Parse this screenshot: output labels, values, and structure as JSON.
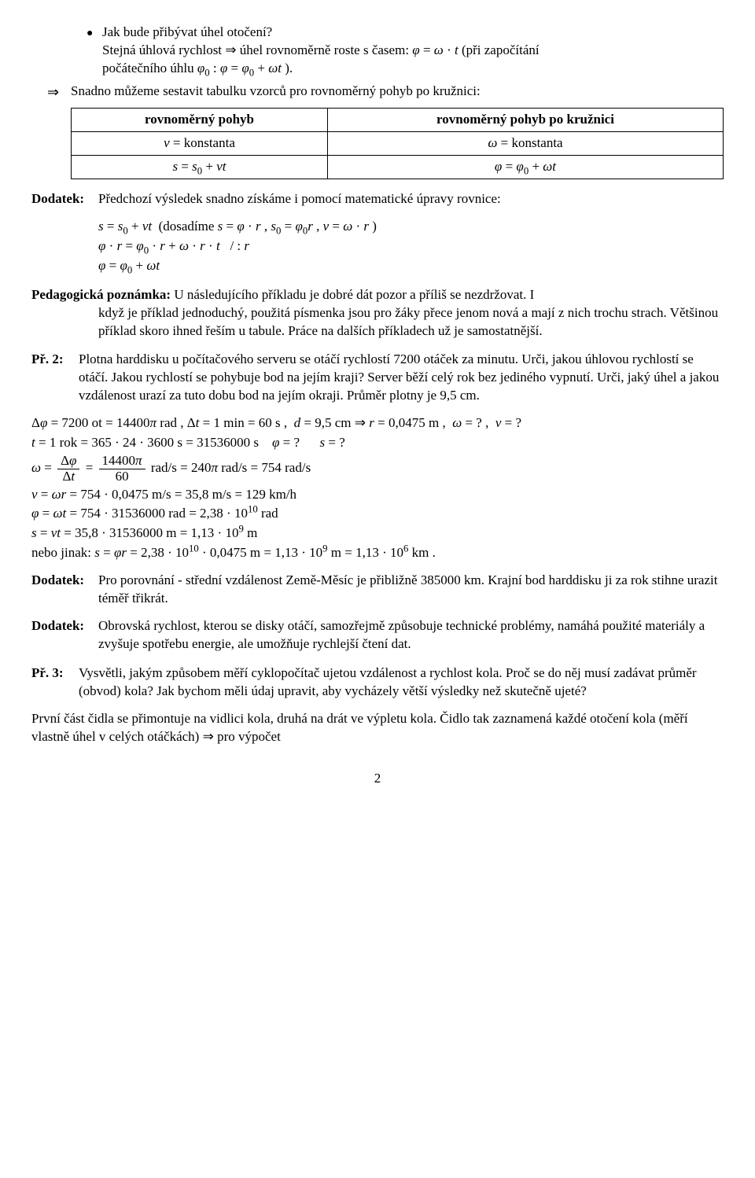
{
  "bullet": {
    "q": "Jak bude přibývat úhel otočení?",
    "ans_line1": "Stejná úhlová rychlost ⇒ úhel rovnoměrně roste s časem: <span class='ital'>φ</span> = <span class='ital'>ω</span> · <span class='ital'>t</span> (při započítání",
    "ans_line2": "počátečního úhlu <span class='ital'>φ</span><span class='sub'>0</span> : <span class='ital'>φ</span> = <span class='ital'>φ</span><span class='sub'>0</span> + <span class='ital'>ωt</span> )."
  },
  "intro_arrow": "Snadno můžeme sestavit tabulku vzorců pro rovnoměrný pohyb po kružnici:",
  "table": {
    "h1": "rovnoměrný pohyb",
    "h2": "rovnoměrný pohyb po kružnici",
    "r1c1": "<span class='ital'>v</span> = konstanta",
    "r1c2": "<span class='ital'>ω</span> = konstanta",
    "r2c1": "<span class='ital'>s</span> = <span class='ital'>s</span><span class='sub'>0</span> + <span class='ital'>vt</span>",
    "r2c2": "<span class='ital'>φ</span> = <span class='ital'>φ</span><span class='sub'>0</span> + <span class='ital'>ωt</span>"
  },
  "dodatek1": {
    "label": "Dodatek:",
    "text": "Předchozí výsledek snadno získáme i pomocí matematické úpravy rovnice:",
    "eq1": "<span class='ital'>s</span> = <span class='ital'>s</span><span class='sub'>0</span> + <span class='ital'>vt</span>&nbsp; (dosadíme <span class='ital'>s</span> = <span class='ital'>φ</span> · <span class='ital'>r</span> , <span class='ital'>s</span><span class='sub'>0</span> = <span class='ital'>φ</span><span class='sub'>0</span><span class='ital'>r</span> , <span class='ital'>v</span> = <span class='ital'>ω</span> · <span class='ital'>r</span> )",
    "eq2": "<span class='ital'>φ</span> · <span class='ital'>r</span> = <span class='ital'>φ</span><span class='sub'>0</span> · <span class='ital'>r</span> + <span class='ital'>ω</span> · <span class='ital'>r</span> · <span class='ital'>t</span>&nbsp;&nbsp; / : <span class='ital'>r</span>",
    "eq3": "<span class='ital'>φ</span> = <span class='ital'>φ</span><span class='sub'>0</span> + <span class='ital'>ωt</span>"
  },
  "pedag": {
    "label": "Pedagogická poznámka: ",
    "text": "U následujícího příkladu je dobré dát pozor a příliš se nezdržovat. I když je příklad jednoduchý, použitá písmenka jsou pro žáky přece jenom nová a mají z nich trochu strach. Většinou příklad skoro ihned řeším u tabule. Práce na dalších příkladech už je samostatnější."
  },
  "pr2": {
    "label": "Př. 2:",
    "text": "Plotna harddisku u počítačového serveru se otáčí rychlostí 7200 otáček za minutu. Urči, jakou úhlovou rychlostí se otáčí. Jakou rychlostí se pohybuje bod na jejím kraji? Server běží celý rok bez jediného vypnutí. Urči, jaký úhel a jakou vzdálenost urazí za tuto dobu bod na jejím okraji. Průměr plotny je 9,5 cm."
  },
  "calc": {
    "l1": "Δ<span class='ital'>φ</span> = 7200 ot = 14400<span class='ital'>π</span> rad , Δ<span class='ital'>t</span> = 1 min = 60 s ,&nbsp; <span class='ital'>d</span> = 9,5 cm ⇒ <span class='ital'>r</span> = 0,0475 m ,&nbsp; <span class='ital'>ω</span> = ? ,&nbsp; <span class='ital'>v</span> = ?",
    "l2": "<span class='ital'>t</span> = 1 rok = 365 · 24 · 3600 s = 31536000 s&nbsp;&nbsp;&nbsp; <span class='ital'>φ</span> = ?&nbsp;&nbsp;&nbsp;&nbsp;&nbsp; <span class='ital'>s</span> = ?",
    "l3_pre": "<span class='ital'>ω</span> = ",
    "l3_num1": "Δ<span class='ital'>φ</span>",
    "l3_den1": "Δ<span class='ital'>t</span>",
    "l3_mid": " = ",
    "l3_num2": "14400<span class='ital'>π</span>",
    "l3_den2": "60",
    "l3_post": " rad/s = 240<span class='ital'>π</span> rad/s = 754 rad/s",
    "l4": "<span class='ital'>v</span> = <span class='ital'>ωr</span> = 754 · 0,0475 m/s = 35,8 m/s = 129 km/h",
    "l5": "<span class='ital'>φ</span> = <span class='ital'>ωt</span> = 754 · 31536000 rad = 2,38 · 10<span class='sup'>10</span> rad",
    "l6": "<span class='ital'>s</span> = <span class='ital'>vt</span> = 35,8 · 31536000 m = 1,13 · 10<span class='sup'>9</span> m",
    "l7": "nebo jinak: <span class='ital'>s</span> = <span class='ital'>φr</span> = 2,38 · 10<span class='sup'>10</span> · 0,0475 m = 1,13 · 10<span class='sup'>9</span> m = 1,13 · 10<span class='sup'>6</span> km ."
  },
  "dodatek2": {
    "label": "Dodatek:",
    "text": "Pro porovnání - střední vzdálenost Země-Měsíc je přibližně 385000 km. Krajní bod harddisku ji za rok stihne urazit téměř třikrát."
  },
  "dodatek3": {
    "label": "Dodatek:",
    "text": "Obrovská rychlost, kterou se disky otáčí, samozřejmě způsobuje technické problémy, namáhá použité materiály a zvyšuje spotřebu energie, ale umožňuje rychlejší čtení dat."
  },
  "pr3": {
    "label": "Př. 3:",
    "text": "Vysvětli, jakým způsobem měří cyklopočítač ujetou vzdálenost a rychlost kola. Proč se do něj musí zadávat průměr (obvod) kola? Jak bychom měli údaj upravit, aby vycházely větší výsledky než skutečně ujeté?"
  },
  "tail": "První část čidla se přimontuje na vidlici kola, druhá na drát ve výpletu kola. Čidlo tak zaznamená každé otočení kola (měří vlastně úhel v celých otáčkách) ⇒ pro výpočet",
  "pagenum": "2"
}
